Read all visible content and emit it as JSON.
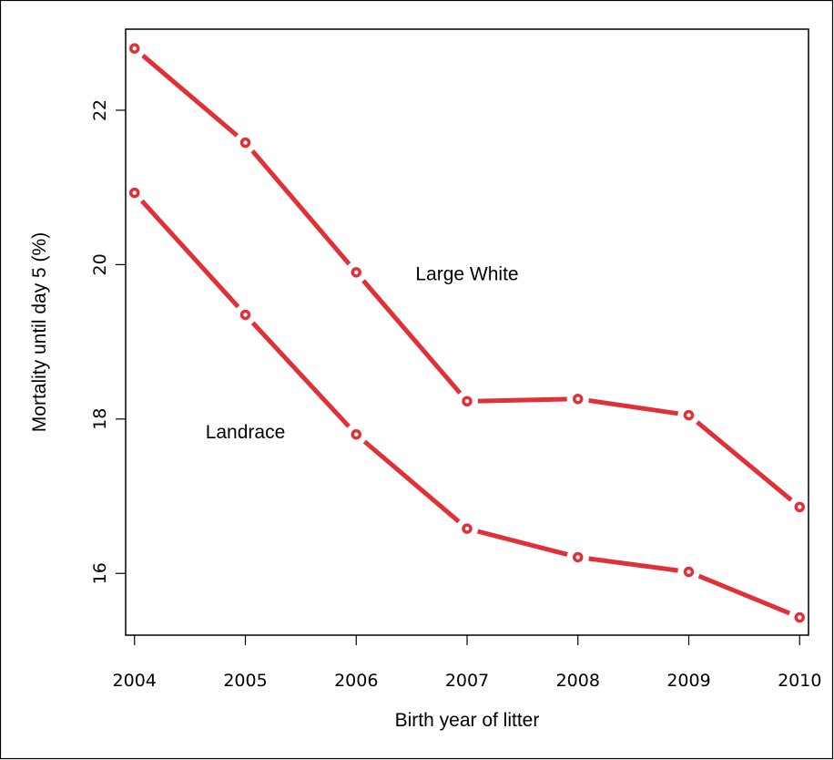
{
  "chart_data": {
    "type": "line",
    "title": "",
    "xlabel": "Birth year of litter",
    "ylabel": "Mortality until day 5 (%)",
    "x": [
      2004,
      2005,
      2006,
      2007,
      2008,
      2009,
      2010
    ],
    "x_ticks": [
      "2004",
      "2005",
      "2006",
      "2007",
      "2008",
      "2009",
      "2010"
    ],
    "y_ticks": [
      "16",
      "18",
      "20",
      "22"
    ],
    "xlim": [
      2003.92,
      2010.08
    ],
    "ylim": [
      15.2,
      23.05
    ],
    "grid": false,
    "legend": "none",
    "series": [
      {
        "values": [
          22.8,
          21.58,
          19.9,
          18.23,
          18.26,
          18.05,
          16.86
        ]
      },
      {
        "values": [
          20.93,
          19.35,
          17.8,
          16.58,
          16.21,
          16.02,
          15.43
        ]
      }
    ],
    "annotations": [
      {
        "text": "Large White",
        "x": 2007.0,
        "y": 19.8
      },
      {
        "text": "Landrace",
        "x": 2005.0,
        "y": 17.75
      }
    ],
    "line_color": "#e03038",
    "marker": "open-circle"
  }
}
